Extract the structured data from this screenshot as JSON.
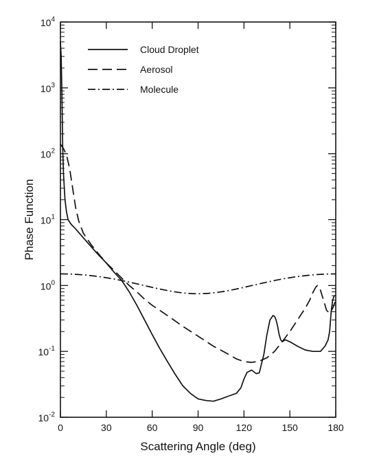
{
  "chart_data": {
    "type": "line",
    "xlabel": "Scattering Angle (deg)",
    "ylabel": "Phase Function",
    "xlim": [
      0,
      180
    ],
    "ylim": [
      0.01,
      10000
    ],
    "yscale": "log",
    "grid": false,
    "legend_position": "top-left",
    "x_ticks": [
      {
        "value": 0,
        "label": "0"
      },
      {
        "value": 30,
        "label": "30"
      },
      {
        "value": 60,
        "label": "60"
      },
      {
        "value": 90,
        "label": "90"
      },
      {
        "value": 120,
        "label": "120"
      },
      {
        "value": 150,
        "label": "150"
      },
      {
        "value": 180,
        "label": "180"
      }
    ],
    "y_ticks": [
      {
        "value": 0.01,
        "base": "10",
        "exp": "-2"
      },
      {
        "value": 0.1,
        "base": "10",
        "exp": "-1"
      },
      {
        "value": 1,
        "base": "10",
        "exp": "0"
      },
      {
        "value": 10,
        "base": "10",
        "exp": "1"
      },
      {
        "value": 100,
        "base": "10",
        "exp": "2"
      },
      {
        "value": 1000,
        "base": "10",
        "exp": "3"
      },
      {
        "value": 10000,
        "base": "10",
        "exp": "4"
      }
    ],
    "series": [
      {
        "name": "Cloud Droplet",
        "style": "solid",
        "color": "#111111",
        "x": [
          0,
          0.5,
          1,
          1.5,
          2,
          3,
          4,
          5,
          7,
          10,
          15,
          20,
          25,
          30,
          35,
          40,
          45,
          50,
          55,
          60,
          65,
          70,
          75,
          80,
          85,
          90,
          95,
          100,
          105,
          110,
          115,
          118,
          120,
          122,
          125,
          128,
          130,
          133,
          135,
          137,
          139,
          140,
          141,
          142,
          143,
          144,
          145,
          147,
          150,
          155,
          160,
          165,
          170,
          173,
          175,
          176,
          177,
          178,
          179,
          180
        ],
        "y": [
          5000,
          3000,
          800,
          120,
          50,
          20,
          13,
          10,
          8.5,
          7.2,
          5.3,
          3.9,
          2.9,
          2.2,
          1.6,
          1.2,
          0.8,
          0.5,
          0.3,
          0.18,
          0.11,
          0.07,
          0.045,
          0.03,
          0.023,
          0.019,
          0.018,
          0.0175,
          0.019,
          0.021,
          0.023,
          0.028,
          0.038,
          0.048,
          0.052,
          0.046,
          0.047,
          0.09,
          0.18,
          0.3,
          0.35,
          0.34,
          0.3,
          0.24,
          0.18,
          0.15,
          0.14,
          0.15,
          0.14,
          0.12,
          0.105,
          0.1,
          0.1,
          0.12,
          0.15,
          0.2,
          0.4,
          0.6,
          0.7,
          0.7
        ]
      },
      {
        "name": "Aerosol",
        "style": "dashed",
        "color": "#111111",
        "x": [
          0,
          2,
          4,
          6,
          8,
          10,
          12,
          15,
          20,
          25,
          30,
          35,
          40,
          45,
          50,
          55,
          60,
          70,
          80,
          90,
          100,
          110,
          115,
          120,
          125,
          130,
          135,
          140,
          145,
          150,
          155,
          160,
          163,
          165,
          167,
          168,
          170,
          172,
          174,
          176,
          178,
          180
        ],
        "y": [
          140,
          120,
          95,
          60,
          30,
          15,
          9.5,
          6.2,
          4.2,
          3.0,
          2.2,
          1.7,
          1.3,
          1.0,
          0.8,
          0.62,
          0.5,
          0.35,
          0.24,
          0.17,
          0.12,
          0.09,
          0.077,
          0.07,
          0.068,
          0.071,
          0.08,
          0.1,
          0.14,
          0.2,
          0.3,
          0.45,
          0.6,
          0.78,
          0.95,
          1.0,
          0.85,
          0.6,
          0.42,
          0.38,
          0.45,
          0.6
        ]
      },
      {
        "name": "Molecule",
        "style": "dashdot",
        "color": "#111111",
        "formula": "0.75*(1+cos^2(theta))"
      }
    ]
  }
}
